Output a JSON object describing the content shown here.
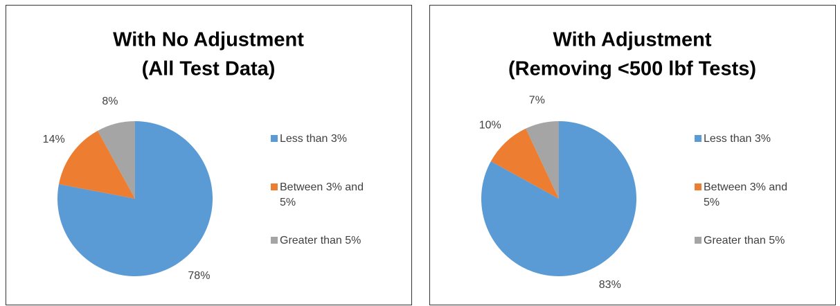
{
  "chart_data": [
    {
      "type": "pie",
      "title": [
        "With No Adjustment",
        "(All Test Data)"
      ],
      "categories": [
        "Less than 3%",
        "Between 3% and 5%",
        "Greater than 5%"
      ],
      "values": [
        78,
        14,
        8
      ],
      "value_labels": [
        "78%",
        "14%",
        "8%"
      ],
      "colors": [
        "#5b9bd5",
        "#ed7d31",
        "#a5a5a5"
      ],
      "legend": "right"
    },
    {
      "type": "pie",
      "title": [
        "With Adjustment",
        "(Removing <500 lbf Tests)"
      ],
      "categories": [
        "Less than 3%",
        "Between 3% and 5%",
        "Greater than 5%"
      ],
      "values": [
        83,
        10,
        7
      ],
      "value_labels": [
        "83%",
        "10%",
        "7%"
      ],
      "colors": [
        "#5b9bd5",
        "#ed7d31",
        "#a5a5a5"
      ],
      "legend": "right"
    }
  ]
}
